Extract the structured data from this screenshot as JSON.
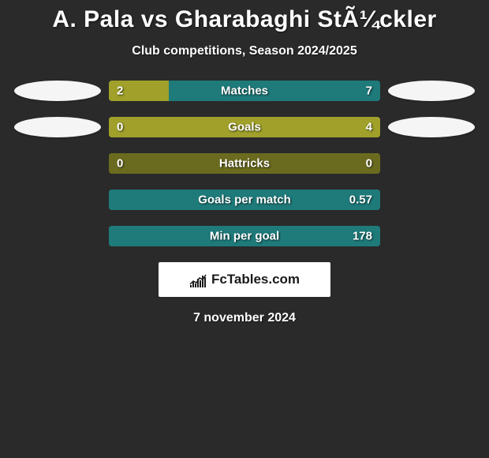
{
  "title": "A. Pala vs Gharabaghi StÃ¼ckler",
  "subtitle": "Club competitions, Season 2024/2025",
  "date": "7 november 2024",
  "logo_text": "FcTables.com",
  "colors": {
    "background": "#2a2a2a",
    "olive": "#a0a02a",
    "dark_olive": "#6b6b1f",
    "teal": "#1f7a7a",
    "ellipse": "#f5f5f5",
    "logo_bg": "#ffffff",
    "text": "#ffffff"
  },
  "line_chart_icon": {
    "bars": [
      3,
      7,
      5,
      11,
      9,
      15,
      13
    ],
    "line_points": [
      [
        1,
        16
      ],
      [
        5,
        12
      ],
      [
        9,
        14
      ],
      [
        13,
        8
      ],
      [
        17,
        10
      ],
      [
        21,
        4
      ]
    ]
  },
  "rows": [
    {
      "label": "Matches",
      "left_val": "2",
      "right_val": "7",
      "left_width_pct": 22,
      "right_width_pct": 78,
      "left_color": "#a0a02a",
      "right_color": "#1f7a7a",
      "show_left_ellipse": true,
      "show_right_ellipse": true
    },
    {
      "label": "Goals",
      "left_val": "0",
      "right_val": "4",
      "left_width_pct": 0,
      "right_width_pct": 100,
      "left_color": "#a0a02a",
      "right_color": "#a0a02a",
      "show_left_ellipse": true,
      "show_right_ellipse": true
    },
    {
      "label": "Hattricks",
      "left_val": "0",
      "right_val": "0",
      "left_width_pct": 0,
      "right_width_pct": 100,
      "left_color": "#a0a02a",
      "right_color": "#6b6b1f",
      "show_left_ellipse": false,
      "show_right_ellipse": false
    },
    {
      "label": "Goals per match",
      "left_val": "",
      "right_val": "0.57",
      "left_width_pct": 0,
      "right_width_pct": 100,
      "left_color": "#a0a02a",
      "right_color": "#1f7a7a",
      "show_left_ellipse": false,
      "show_right_ellipse": false
    },
    {
      "label": "Min per goal",
      "left_val": "",
      "right_val": "178",
      "left_width_pct": 0,
      "right_width_pct": 100,
      "left_color": "#a0a02a",
      "right_color": "#1f7a7a",
      "show_left_ellipse": false,
      "show_right_ellipse": false
    }
  ]
}
